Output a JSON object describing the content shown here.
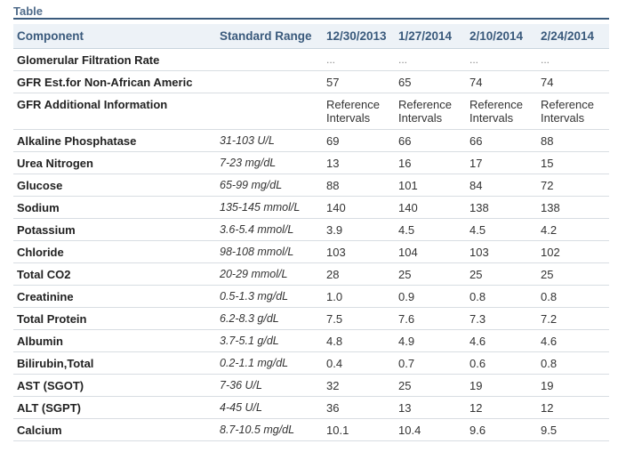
{
  "caption": "Table",
  "headers": [
    "Component",
    "Standard Range",
    "12/30/2013",
    "1/27/2014",
    "2/10/2014",
    "2/24/2014"
  ],
  "rows": [
    {
      "component": "Glomerular Filtration Rate",
      "range": "",
      "values": [
        "...",
        "...",
        "...",
        "..."
      ],
      "style": "dots"
    },
    {
      "component": "GFR Est.for Non-African Americ",
      "range": "",
      "values": [
        "57",
        "65",
        "74",
        "74"
      ]
    },
    {
      "component": "GFR Additional Information",
      "range": "",
      "values": [
        "Reference Intervals",
        "Reference Intervals",
        "Reference Intervals",
        "Reference Intervals"
      ],
      "style": "tall"
    },
    {
      "component": "Alkaline Phosphatase",
      "range": "31-103 U/L",
      "values": [
        "69",
        "66",
        "66",
        "88"
      ]
    },
    {
      "component": "Urea Nitrogen",
      "range": "7-23 mg/dL",
      "values": [
        "13",
        "16",
        "17",
        "15"
      ]
    },
    {
      "component": "Glucose",
      "range": "65-99 mg/dL",
      "values": [
        "88",
        "101",
        "84",
        "72"
      ]
    },
    {
      "component": "Sodium",
      "range": "135-145 mmol/L",
      "values": [
        "140",
        "140",
        "138",
        "138"
      ]
    },
    {
      "component": "Potassium",
      "range": "3.6-5.4 mmol/L",
      "values": [
        "3.9",
        "4.5",
        "4.5",
        "4.2"
      ]
    },
    {
      "component": "Chloride",
      "range": "98-108 mmol/L",
      "values": [
        "103",
        "104",
        "103",
        "102"
      ]
    },
    {
      "component": "Total CO2",
      "range": "20-29 mmol/L",
      "values": [
        "28",
        "25",
        "25",
        "25"
      ]
    },
    {
      "component": "Creatinine",
      "range": "0.5-1.3 mg/dL",
      "values": [
        "1.0",
        "0.9",
        "0.8",
        "0.8"
      ]
    },
    {
      "component": "Total Protein",
      "range": "6.2-8.3 g/dL",
      "values": [
        "7.5",
        "7.6",
        "7.3",
        "7.2"
      ]
    },
    {
      "component": "Albumin",
      "range": "3.7-5.1 g/dL",
      "values": [
        "4.8",
        "4.9",
        "4.6",
        "4.6"
      ]
    },
    {
      "component": "Bilirubin,Total",
      "range": "0.2-1.1 mg/dL",
      "values": [
        "0.4",
        "0.7",
        "0.6",
        "0.8"
      ]
    },
    {
      "component": "AST (SGOT)",
      "range": "7-36 U/L",
      "values": [
        "32",
        "25",
        "19",
        "19"
      ]
    },
    {
      "component": "ALT (SGPT)",
      "range": "4-45 U/L",
      "values": [
        "36",
        "13",
        "12",
        "12"
      ]
    },
    {
      "component": "Calcium",
      "range": "8.7-10.5 mg/dL",
      "values": [
        "10.1",
        "10.4",
        "9.6",
        "9.5"
      ]
    }
  ]
}
